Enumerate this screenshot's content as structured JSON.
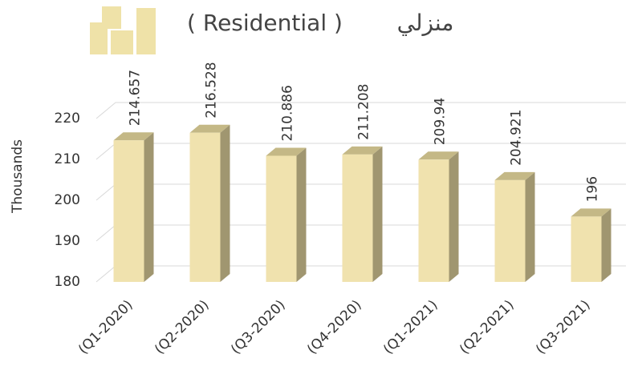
{
  "chart_data": {
    "type": "bar",
    "title": "( Residential )",
    "subtitle": "منزلي",
    "y_label": "Thousands",
    "categories": [
      "(Q1-2020)",
      "(Q2-2020)",
      "(Q3-2020)",
      "(Q4-2020)",
      "(Q1-2021)",
      "(Q2-2021)",
      "(Q3-2021)"
    ],
    "values": [
      214.657,
      216.528,
      210.886,
      211.208,
      209.94,
      204.921,
      196
    ],
    "color": "#f0e2ae",
    "ylim": [
      180,
      220
    ],
    "yticks": [
      180,
      190,
      200,
      210,
      220
    ],
    "grid": true
  }
}
